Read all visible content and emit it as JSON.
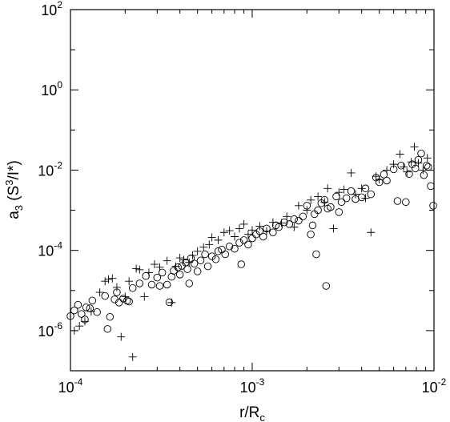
{
  "chart_data": {
    "type": "scatter",
    "title": "",
    "xlabel": {
      "base": "r/R",
      "sub": "c"
    },
    "ylabel": {
      "base": "a",
      "sub": "3",
      "open": " (S",
      "sup": "3",
      "close": "/I*)"
    },
    "xscale": "log",
    "yscale": "log",
    "xlim": [
      0.0001,
      0.01
    ],
    "ylim": [
      1e-07,
      100.0
    ],
    "grid": false,
    "legend": "none",
    "x_ticks": [
      {
        "value": 0.0001,
        "base": "10",
        "exp": "-4"
      },
      {
        "value": 0.001,
        "base": "10",
        "exp": "-3"
      },
      {
        "value": 0.01,
        "base": "10",
        "exp": "-2"
      }
    ],
    "y_ticks": [
      {
        "value": 1e-06,
        "base": "10",
        "exp": "-6"
      },
      {
        "value": 0.0001,
        "base": "10",
        "exp": "-4"
      },
      {
        "value": 0.01,
        "base": "10",
        "exp": "-2"
      },
      {
        "value": 1.0,
        "base": "10",
        "exp": "0"
      },
      {
        "value": 100.0,
        "base": "10",
        "exp": "2"
      }
    ],
    "series": [
      {
        "marker": "circle",
        "color": "#000000",
        "points": [
          [
            0.0001,
            2.3e-06
          ],
          [
            0.000105,
            3.2e-06
          ],
          [
            0.00011,
            4.4e-06
          ],
          [
            0.000115,
            2.6e-06
          ],
          [
            0.00012,
            1.9e-06
          ],
          [
            0.000122,
            3.8e-06
          ],
          [
            0.000128,
            3.6e-06
          ],
          [
            0.000132,
            5.6e-06
          ],
          [
            0.00014,
            2.9e-06
          ],
          [
            0.000155,
            7.3e-06
          ],
          [
            0.00016,
            1.1e-06
          ],
          [
            0.000165,
            2.2e-06
          ],
          [
            0.000175,
            6e-06
          ],
          [
            0.00018,
            9e-06
          ],
          [
            0.000185,
            5e-06
          ],
          [
            0.000195,
            6.3e-06
          ],
          [
            0.000205,
            5.6e-06
          ],
          [
            0.00021,
            5.3e-06
          ],
          [
            0.00022,
            1.15e-05
          ],
          [
            0.00024,
            1.5e-05
          ],
          [
            0.00026,
            2.3e-05
          ],
          [
            0.00028,
            1.4e-05
          ],
          [
            0.0003,
            2.1e-05
          ],
          [
            0.00031,
            1.3e-05
          ],
          [
            0.00032,
            2.8e-05
          ],
          [
            0.00034,
            1.4e-05
          ],
          [
            0.00035,
            5.1e-06
          ],
          [
            0.00036,
            2.2e-05
          ],
          [
            0.00037,
            3.1e-05
          ],
          [
            0.00039,
            3.8e-05
          ],
          [
            0.0004,
            2.5e-05
          ],
          [
            0.00041,
            4.1e-05
          ],
          [
            0.00043,
            5e-05
          ],
          [
            0.00044,
            3.4e-05
          ],
          [
            0.00045,
            1.5e-05
          ],
          [
            0.00046,
            6.3e-05
          ],
          [
            0.00048,
            4.7e-05
          ],
          [
            0.0005,
            3e-05
          ],
          [
            0.00052,
            5.6e-05
          ],
          [
            0.00055,
            8e-05
          ],
          [
            0.00057,
            4e-05
          ],
          [
            0.0006,
            7.1e-05
          ],
          [
            0.00063,
            6e-05
          ],
          [
            0.00065,
            9.5e-05
          ],
          [
            0.00068,
            0.000105
          ],
          [
            0.00071,
            8e-05
          ],
          [
            0.00075,
            0.000125
          ],
          [
            0.0008,
            0.00011
          ],
          [
            0.00085,
            0.000155
          ],
          [
            0.00087,
            4.5e-05
          ],
          [
            0.0009,
            0.00018
          ],
          [
            0.00095,
            0.00014
          ],
          [
            0.001,
            0.0002
          ],
          [
            0.00105,
            0.00025
          ],
          [
            0.0011,
            0.0003
          ],
          [
            0.00115,
            0.00022
          ],
          [
            0.0012,
            0.00035
          ],
          [
            0.0013,
            0.00028
          ],
          [
            0.00135,
            0.00042
          ],
          [
            0.0014,
            0.00038
          ],
          [
            0.0015,
            0.0005
          ],
          [
            0.0016,
            0.00045
          ],
          [
            0.0017,
            0.0006
          ],
          [
            0.0018,
            0.00055
          ],
          [
            0.0019,
            0.0007
          ],
          [
            0.002,
            0.0013
          ],
          [
            0.0021,
            0.00025
          ],
          [
            0.00215,
            0.00042
          ],
          [
            0.0022,
            0.0008
          ],
          [
            0.00225,
            8e-05
          ],
          [
            0.0023,
            0.001
          ],
          [
            0.0024,
            0.0015
          ],
          [
            0.0025,
            0.0018
          ],
          [
            0.00255,
            1.3e-05
          ],
          [
            0.0026,
            0.0011
          ],
          [
            0.0027,
            0.0012
          ],
          [
            0.0029,
            0.0022
          ],
          [
            0.003,
            0.0009
          ],
          [
            0.0031,
            0.0016
          ],
          [
            0.0033,
            0.002
          ],
          [
            0.0035,
            0.003
          ],
          [
            0.0037,
            0.0019
          ],
          [
            0.004,
            0.0021
          ],
          [
            0.0042,
            0.0035
          ],
          [
            0.0045,
            0.0025
          ],
          [
            0.0048,
            0.0065
          ],
          [
            0.005,
            0.005
          ],
          [
            0.0053,
            0.0078
          ],
          [
            0.0055,
            0.0055
          ],
          [
            0.006,
            0.0105
          ],
          [
            0.0063,
            0.0017
          ],
          [
            0.0066,
            0.013
          ],
          [
            0.007,
            0.0016
          ],
          [
            0.0073,
            0.008
          ],
          [
            0.0076,
            0.014
          ],
          [
            0.0079,
            0.011
          ],
          [
            0.0082,
            0.018
          ],
          [
            0.0085,
            0.026
          ],
          [
            0.0088,
            0.0075
          ],
          [
            0.0091,
            0.013
          ],
          [
            0.0093,
            0.012
          ],
          [
            0.0096,
            0.004
          ],
          [
            0.0099,
            0.0013
          ]
        ]
      },
      {
        "marker": "plus",
        "color": "#000000",
        "points": [
          [
            0.000105,
            1e-06
          ],
          [
            0.000112,
            1.3e-06
          ],
          [
            0.00012,
            1.7e-06
          ],
          [
            0.00013,
            3e-06
          ],
          [
            0.000145,
            9e-06
          ],
          [
            0.000155,
            1.7e-05
          ],
          [
            0.000162,
            1.9e-05
          ],
          [
            0.00017,
            2e-05
          ],
          [
            0.00018,
            1.2e-05
          ],
          [
            0.00019,
            7e-07
          ],
          [
            0.0002,
            7e-06
          ],
          [
            0.00021,
            1.7e-05
          ],
          [
            0.00022,
            2.2e-07
          ],
          [
            0.00023,
            3.5e-05
          ],
          [
            0.00024,
            3.3e-05
          ],
          [
            0.000255,
            7e-06
          ],
          [
            0.00027,
            2.8e-05
          ],
          [
            0.00029,
            4.5e-05
          ],
          [
            0.00031,
            3.8e-05
          ],
          [
            0.00034,
            5.5e-05
          ],
          [
            0.00036,
            5e-06
          ],
          [
            0.00038,
            4e-05
          ],
          [
            0.0004,
            6.5e-05
          ],
          [
            0.00042,
            5.8e-05
          ],
          [
            0.00045,
            5e-05
          ],
          [
            0.00047,
            7.5e-05
          ],
          [
            0.0005,
            9.5e-05
          ],
          [
            0.00054,
            0.00012
          ],
          [
            0.00058,
            0.00014
          ],
          [
            0.0006,
            0.00021
          ],
          [
            0.00065,
            0.00018
          ],
          [
            0.0007,
            0.00028
          ],
          [
            0.00075,
            0.00031
          ],
          [
            0.0008,
            0.00022
          ],
          [
            0.00085,
            0.00035
          ],
          [
            0.0009,
            0.00045
          ],
          [
            0.00095,
            0.00025
          ],
          [
            0.001,
            0.00032
          ],
          [
            0.0011,
            0.0004
          ],
          [
            0.0012,
            0.0003
          ],
          [
            0.0013,
            0.0005
          ],
          [
            0.00145,
            0.00048
          ],
          [
            0.00155,
            0.0007
          ],
          [
            0.0017,
            0.00038
          ],
          [
            0.0018,
            0.0013
          ],
          [
            0.002,
            0.001
          ],
          [
            0.0021,
            0.0018
          ],
          [
            0.0023,
            0.0022
          ],
          [
            0.0025,
            0.0016
          ],
          [
            0.0026,
            0.0035
          ],
          [
            0.0028,
            0.00035
          ],
          [
            0.003,
            0.0028
          ],
          [
            0.0032,
            0.0033
          ],
          [
            0.0035,
            0.0085
          ],
          [
            0.0037,
            0.0025
          ],
          [
            0.004,
            0.0035
          ],
          [
            0.0042,
            0.002
          ],
          [
            0.0045,
            0.00028
          ],
          [
            0.0048,
            0.007
          ],
          [
            0.005,
            0.0058
          ],
          [
            0.0055,
            0.01
          ],
          [
            0.006,
            0.014
          ],
          [
            0.0065,
            0.025
          ],
          [
            0.0068,
            0.012
          ],
          [
            0.0071,
            0.009
          ],
          [
            0.0075,
            0.016
          ],
          [
            0.0078,
            0.038
          ],
          [
            0.0082,
            0.015
          ],
          [
            0.0087,
            0.01
          ],
          [
            0.0092,
            0.02
          ]
        ]
      }
    ]
  }
}
